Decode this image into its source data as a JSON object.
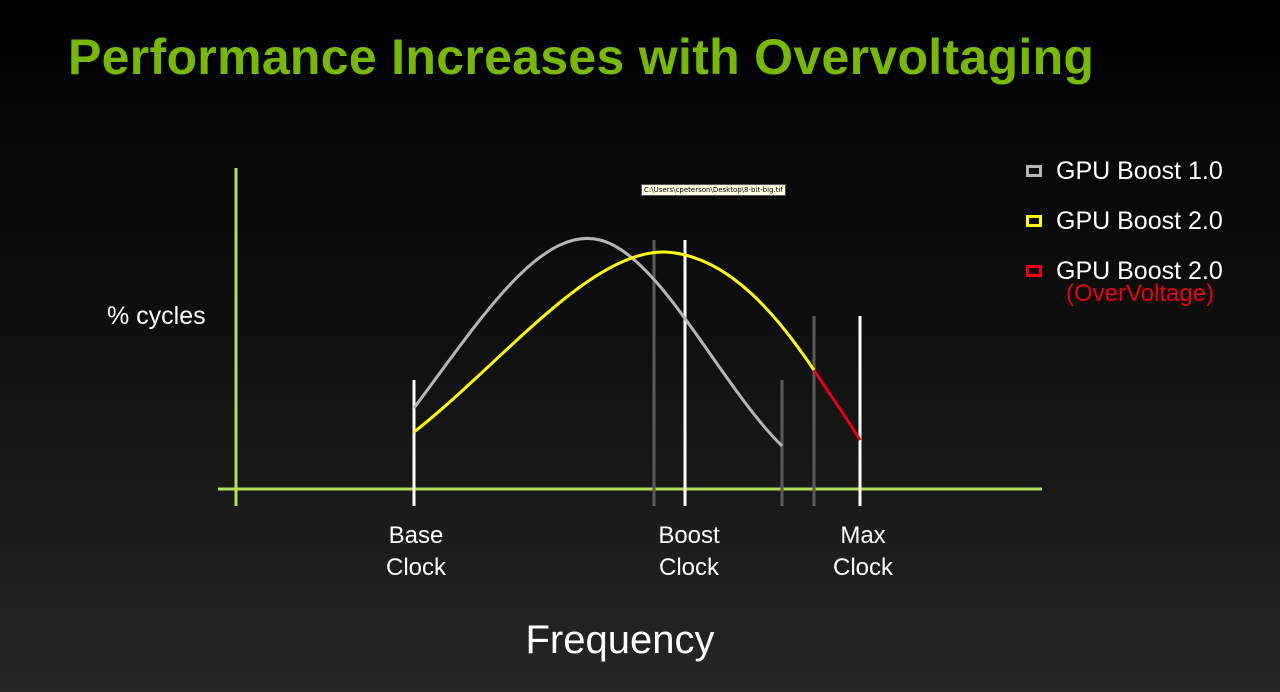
{
  "slide": {
    "title": "Performance Increases with Overvoltaging"
  },
  "chart": {
    "ylabel": "% cycles",
    "xlabel": "Frequency",
    "clock_labels": {
      "base": [
        "Base",
        "Clock"
      ],
      "boost": [
        "Boost",
        "Clock"
      ],
      "max": [
        "Max",
        "Clock"
      ]
    },
    "axis_color": "#b1e35a",
    "series": [
      {
        "name": "GPU Boost 1.0",
        "color": "#b5b5b5"
      },
      {
        "name": "GPU Boost 2.0",
        "color": "#ffff00"
      },
      {
        "name": "GPU Boost 2.0",
        "sub": "(OverVoltage)",
        "color": "#e8000b"
      }
    ]
  },
  "tooltip": {
    "path_text": "C:\\Users\\cpeterson\\Desktop\\8-bit-big.tif"
  },
  "colors": {
    "title": "#76b900",
    "background": "#000000",
    "text": "#ffffff"
  }
}
